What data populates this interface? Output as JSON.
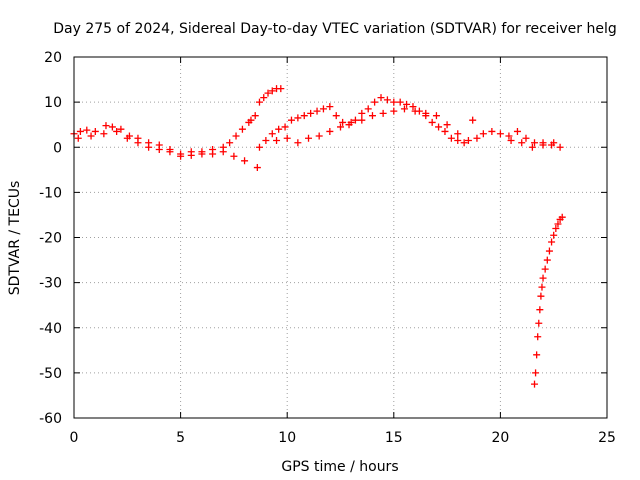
{
  "chart_data": {
    "type": "scatter",
    "title": "Day 275 of 2024, Sidereal Day-to-day VTEC variation (SDTVAR) for receiver helg",
    "xlabel": "GPS time / hours",
    "ylabel": "SDTVAR / TECUs",
    "xlim": [
      0,
      25
    ],
    "ylim": [
      -60,
      20
    ],
    "xticks": [
      0,
      5,
      10,
      15,
      20,
      25
    ],
    "yticks": [
      -60,
      -50,
      -40,
      -30,
      -20,
      -10,
      0,
      10,
      20
    ],
    "grid": true,
    "marker": "+",
    "color": "#ff0000",
    "series": [
      {
        "name": "SDTVAR",
        "points": [
          [
            0.0,
            3.0
          ],
          [
            0.3,
            3.5
          ],
          [
            0.6,
            3.8
          ],
          [
            1.0,
            3.5
          ],
          [
            1.4,
            3.0
          ],
          [
            1.8,
            4.5
          ],
          [
            2.2,
            4.0
          ],
          [
            2.6,
            2.5
          ],
          [
            3.0,
            2.0
          ],
          [
            3.5,
            1.0
          ],
          [
            4.0,
            0.5
          ],
          [
            4.5,
            -0.5
          ],
          [
            5.0,
            -1.5
          ],
          [
            5.5,
            -1.8
          ],
          [
            6.0,
            -1.0
          ],
          [
            6.5,
            -0.5
          ],
          [
            7.0,
            -1.0
          ],
          [
            7.5,
            -2.0
          ],
          [
            8.0,
            -3.0
          ],
          [
            8.6,
            -4.5
          ],
          [
            0.2,
            2.0
          ],
          [
            0.8,
            2.5
          ],
          [
            1.5,
            4.8
          ],
          [
            2.0,
            3.5
          ],
          [
            2.5,
            2.0
          ],
          [
            3.0,
            1.0
          ],
          [
            3.5,
            0.0
          ],
          [
            4.0,
            -0.5
          ],
          [
            4.5,
            -1.0
          ],
          [
            5.0,
            -2.0
          ],
          [
            5.5,
            -1.0
          ],
          [
            6.0,
            -1.5
          ],
          [
            6.5,
            -1.5
          ],
          [
            7.0,
            0.0
          ],
          [
            7.3,
            1.0
          ],
          [
            7.6,
            2.5
          ],
          [
            7.9,
            4.0
          ],
          [
            8.2,
            5.5
          ],
          [
            8.5,
            7.0
          ],
          [
            8.3,
            6.0
          ],
          [
            8.7,
            10.0
          ],
          [
            8.9,
            11.0
          ],
          [
            9.1,
            12.0
          ],
          [
            9.3,
            12.5
          ],
          [
            9.5,
            13.0
          ],
          [
            9.7,
            13.0
          ],
          [
            8.7,
            0.0
          ],
          [
            9.0,
            1.5
          ],
          [
            9.3,
            3.0
          ],
          [
            9.6,
            4.0
          ],
          [
            9.9,
            4.5
          ],
          [
            10.2,
            6.0
          ],
          [
            10.5,
            6.5
          ],
          [
            10.8,
            7.0
          ],
          [
            11.1,
            7.5
          ],
          [
            11.4,
            8.0
          ],
          [
            11.7,
            8.5
          ],
          [
            12.0,
            9.0
          ],
          [
            12.3,
            7.0
          ],
          [
            12.6,
            5.5
          ],
          [
            12.9,
            5.0
          ],
          [
            13.2,
            6.0
          ],
          [
            13.5,
            7.5
          ],
          [
            13.8,
            8.5
          ],
          [
            14.1,
            10.0
          ],
          [
            14.4,
            11.0
          ],
          [
            14.7,
            10.5
          ],
          [
            15.0,
            10.0
          ],
          [
            15.3,
            10.0
          ],
          [
            15.6,
            9.5
          ],
          [
            15.9,
            9.0
          ],
          [
            16.2,
            8.0
          ],
          [
            16.5,
            7.0
          ],
          [
            16.8,
            5.5
          ],
          [
            17.1,
            4.5
          ],
          [
            17.4,
            3.5
          ],
          [
            17.7,
            2.0
          ],
          [
            18.0,
            1.5
          ],
          [
            18.3,
            1.0
          ],
          [
            9.5,
            1.5
          ],
          [
            10.0,
            2.0
          ],
          [
            10.5,
            1.0
          ],
          [
            11.0,
            2.0
          ],
          [
            11.5,
            2.5
          ],
          [
            12.0,
            3.5
          ],
          [
            12.5,
            4.5
          ],
          [
            13.0,
            5.5
          ],
          [
            13.5,
            6.0
          ],
          [
            14.0,
            7.0
          ],
          [
            14.5,
            7.5
          ],
          [
            15.0,
            8.0
          ],
          [
            15.5,
            8.5
          ],
          [
            16.0,
            8.0
          ],
          [
            16.5,
            7.5
          ],
          [
            17.0,
            7.0
          ],
          [
            17.5,
            5.0
          ],
          [
            18.0,
            3.0
          ],
          [
            18.5,
            1.5
          ],
          [
            18.7,
            6.0
          ],
          [
            18.9,
            2.0
          ],
          [
            19.2,
            3.0
          ],
          [
            19.6,
            3.5
          ],
          [
            20.0,
            3.0
          ],
          [
            20.4,
            2.5
          ],
          [
            20.8,
            3.5
          ],
          [
            21.2,
            2.0
          ],
          [
            21.6,
            1.0
          ],
          [
            22.0,
            0.5
          ],
          [
            22.4,
            0.5
          ],
          [
            22.8,
            0.0
          ],
          [
            20.5,
            1.5
          ],
          [
            21.0,
            1.0
          ],
          [
            21.5,
            0.0
          ],
          [
            22.0,
            1.0
          ],
          [
            22.5,
            1.0
          ],
          [
            21.6,
            -52.5
          ],
          [
            21.65,
            -50.0
          ],
          [
            21.7,
            -46.0
          ],
          [
            21.75,
            -42.0
          ],
          [
            21.8,
            -39.0
          ],
          [
            21.85,
            -36.0
          ],
          [
            21.9,
            -33.0
          ],
          [
            21.95,
            -31.0
          ],
          [
            22.0,
            -29.0
          ],
          [
            22.1,
            -27.0
          ],
          [
            22.2,
            -25.0
          ],
          [
            22.3,
            -23.0
          ],
          [
            22.4,
            -21.0
          ],
          [
            22.5,
            -19.5
          ],
          [
            22.6,
            -18.0
          ],
          [
            22.7,
            -17.0
          ],
          [
            22.8,
            -16.0
          ],
          [
            22.9,
            -15.5
          ]
        ]
      }
    ]
  }
}
